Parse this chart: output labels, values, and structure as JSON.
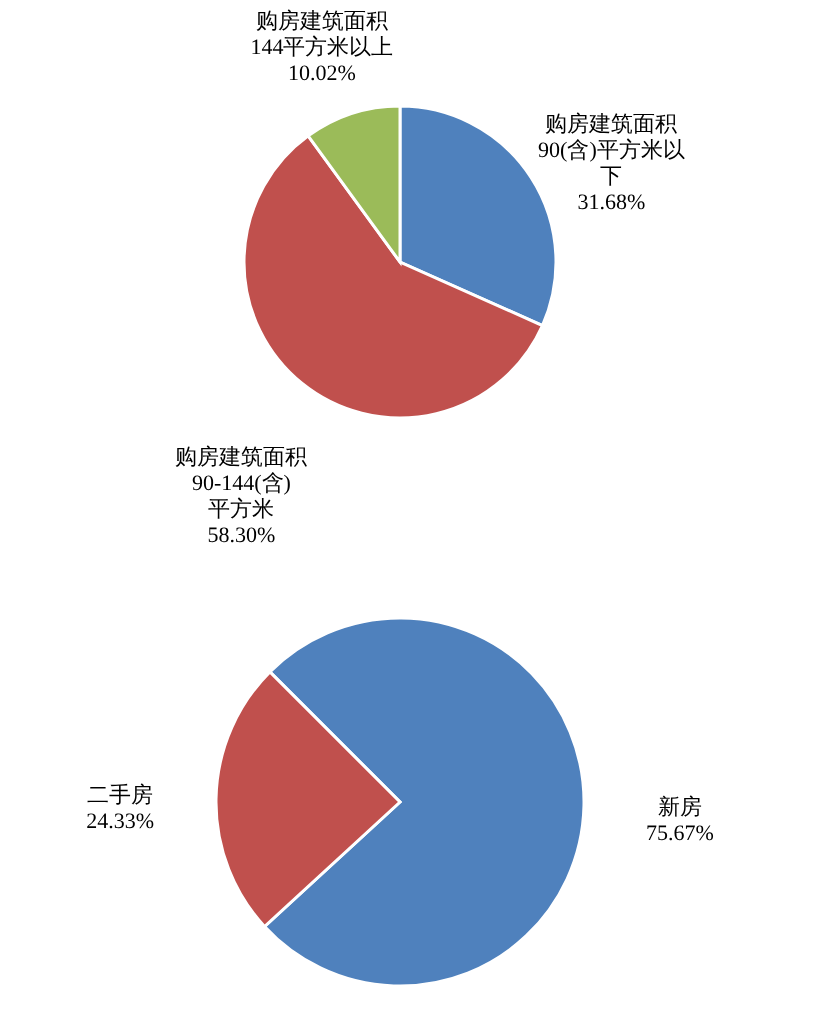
{
  "chart_data": [
    {
      "type": "pie",
      "categories": [
        "购房建筑面积90(含)平方米以下",
        "购房建筑面积90-144(含)平方米",
        "购房建筑面积144平方米以上"
      ],
      "values": [
        31.68,
        58.3,
        10.02
      ],
      "colors": [
        "#4f81bd",
        "#c0504d",
        "#9bbb59"
      ],
      "value_labels": [
        "31.68%",
        "58.30%",
        "10.02%"
      ]
    },
    {
      "type": "pie",
      "categories": [
        "新房",
        "二手房"
      ],
      "values": [
        75.67,
        24.33
      ],
      "colors": [
        "#4f81bd",
        "#c0504d"
      ],
      "value_labels": [
        "75.67%",
        "24.33%"
      ]
    }
  ]
}
